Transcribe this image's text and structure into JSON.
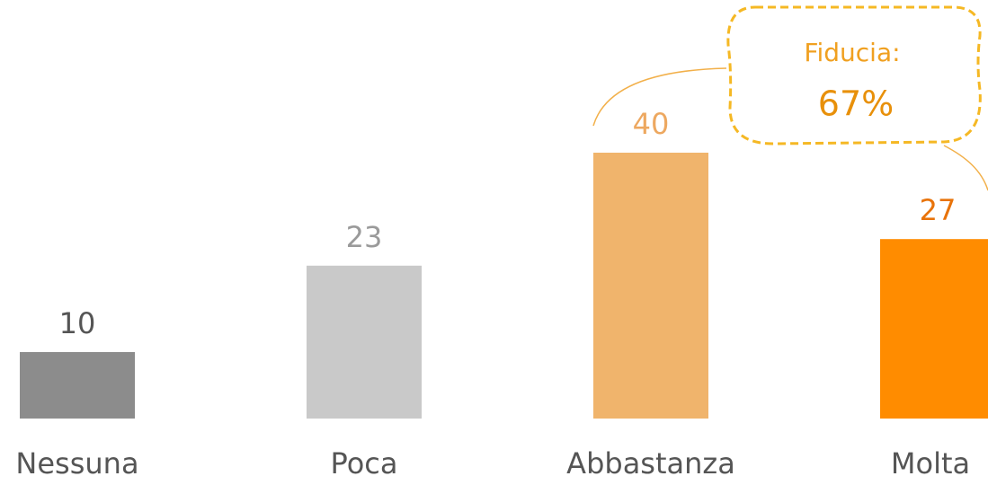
{
  "chart_data": {
    "type": "bar",
    "categories": [
      "Nessuna",
      "Poca",
      "Abbastanza",
      "Molta"
    ],
    "values": [
      10,
      23,
      40,
      27
    ],
    "colors": [
      "#8c8c8c",
      "#c9c9c9",
      "#f0b46c",
      "#ff8c00"
    ],
    "label_colors": [
      "#555555",
      "#9a9a9a",
      "#eda860",
      "#e8730a"
    ],
    "annotation": {
      "text": "Fiducia:",
      "value_text": "67%"
    }
  }
}
